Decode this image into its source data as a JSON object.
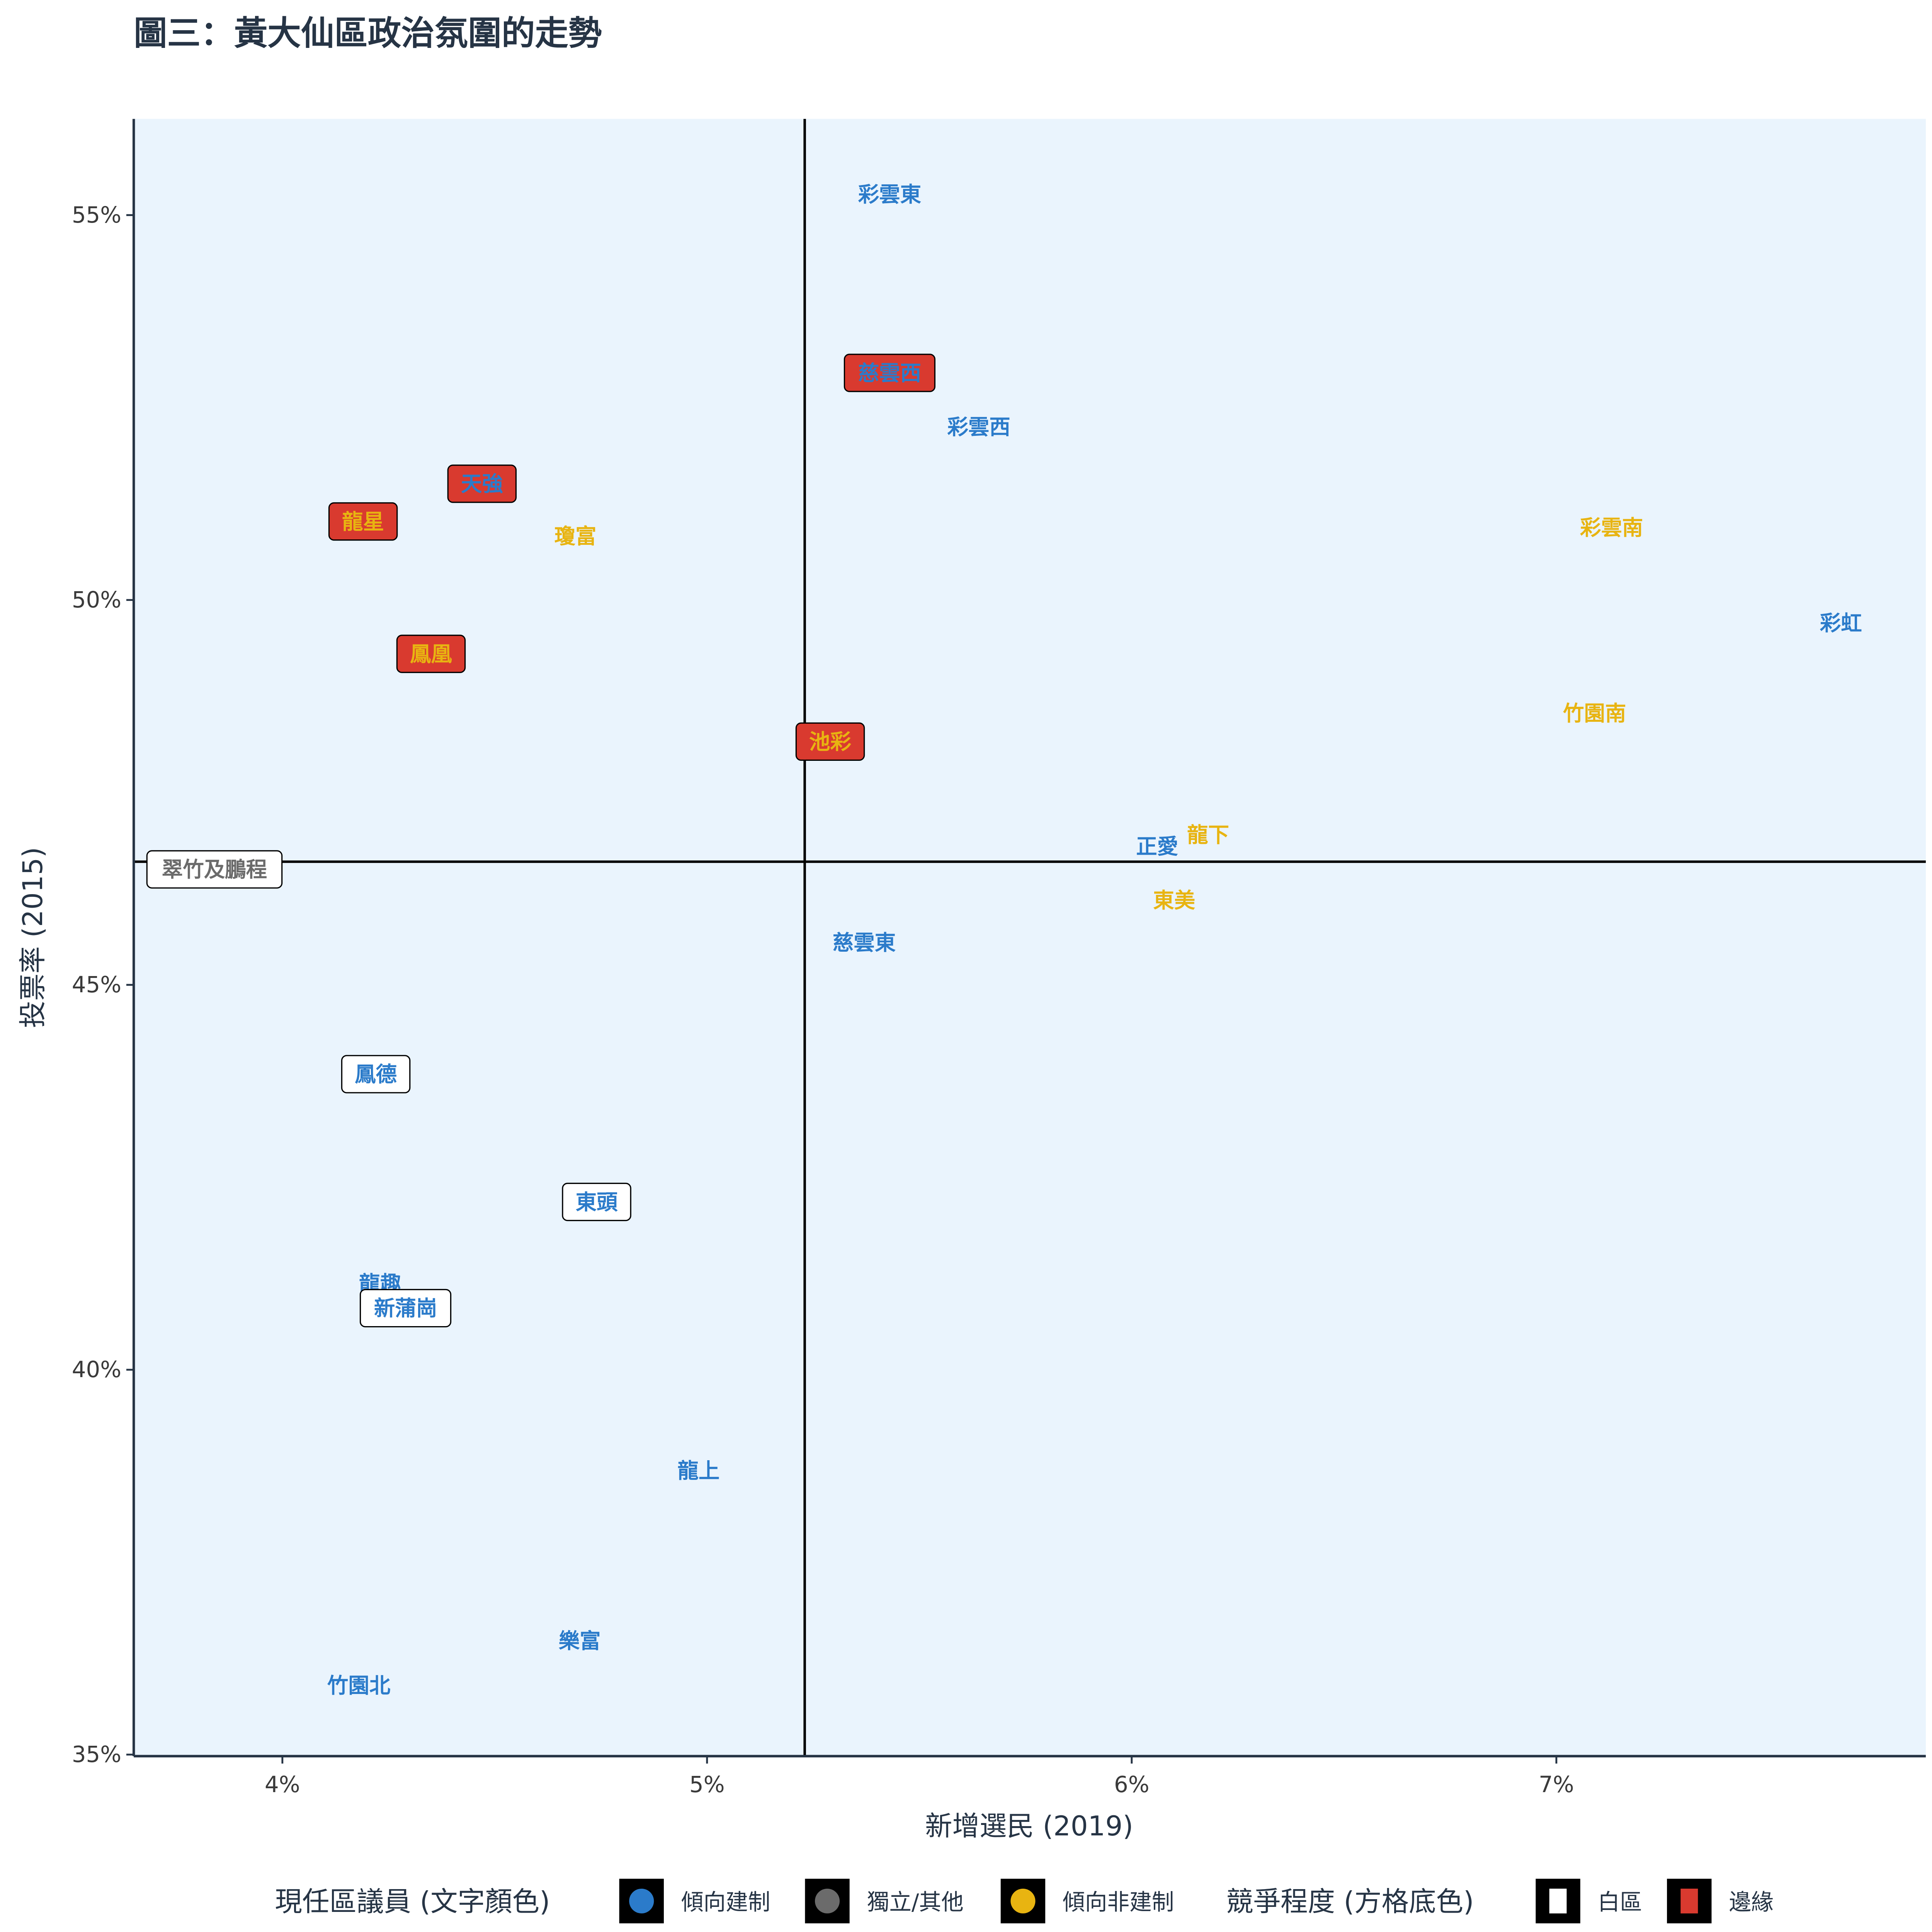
{
  "chart_data": {
    "type": "scatter",
    "title": "圖三：黃大仙區政治氛圍的走勢",
    "xlabel": "新增選民 (2019)",
    "ylabel": "投票率 (2015)",
    "xlim": [
      3.65,
      7.87
    ],
    "ylim": [
      34.98,
      56.25
    ],
    "x_unit": "%",
    "y_unit": "%",
    "x_ticks": [
      {
        "v": 4,
        "label": "4%"
      },
      {
        "v": 5,
        "label": "5%"
      },
      {
        "v": 6,
        "label": "6%"
      },
      {
        "v": 7,
        "label": "7%"
      }
    ],
    "y_ticks": [
      {
        "v": 35,
        "label": "35%"
      },
      {
        "v": 40,
        "label": "40%"
      },
      {
        "v": 45,
        "label": "45%"
      },
      {
        "v": 50,
        "label": "50%"
      },
      {
        "v": 55,
        "label": "55%"
      }
    ],
    "reference_lines": {
      "x": 5.23,
      "y": 46.6
    },
    "grid": false,
    "background": "#eaf4fd",
    "colors": {
      "pro_establishment": "#2b7bca",
      "independent": "#6b6b6b",
      "non_establishment": "#e8b411",
      "safe": "#ffffff",
      "marginal": "#d93a2f"
    },
    "points": [
      {
        "label": "彩雲東",
        "x": 5.43,
        "y": 55.27,
        "camp": "pro_establishment",
        "competition": "none"
      },
      {
        "label": "慈雲西",
        "x": 5.43,
        "y": 52.95,
        "camp": "pro_establishment",
        "competition": "marginal"
      },
      {
        "label": "彩雲西",
        "x": 5.64,
        "y": 52.25,
        "camp": "pro_establishment",
        "competition": "none"
      },
      {
        "label": "天強",
        "x": 4.47,
        "y": 51.51,
        "camp": "pro_establishment",
        "competition": "marginal"
      },
      {
        "label": "龍星",
        "x": 4.19,
        "y": 51.02,
        "camp": "non_establishment",
        "competition": "marginal"
      },
      {
        "label": "瓊富",
        "x": 4.69,
        "y": 50.83,
        "camp": "non_establishment",
        "competition": "none"
      },
      {
        "label": "彩雲南",
        "x": 7.13,
        "y": 50.94,
        "camp": "non_establishment",
        "competition": "none"
      },
      {
        "label": "彩虹",
        "x": 7.67,
        "y": 49.7,
        "camp": "pro_establishment",
        "competition": "none"
      },
      {
        "label": "鳳凰",
        "x": 4.35,
        "y": 49.3,
        "camp": "non_establishment",
        "competition": "marginal"
      },
      {
        "label": "竹園南",
        "x": 7.09,
        "y": 48.53,
        "camp": "non_establishment",
        "competition": "none"
      },
      {
        "label": "池彩",
        "x": 5.29,
        "y": 48.16,
        "camp": "non_establishment",
        "competition": "marginal"
      },
      {
        "label": "龍下",
        "x": 6.18,
        "y": 46.95,
        "camp": "non_establishment",
        "competition": "none"
      },
      {
        "label": "正愛",
        "x": 6.06,
        "y": 46.8,
        "camp": "pro_establishment",
        "competition": "none"
      },
      {
        "label": "翠竹及鵬程",
        "x": 3.84,
        "y": 46.5,
        "camp": "independent",
        "competition": "safe"
      },
      {
        "label": "東美",
        "x": 6.1,
        "y": 46.1,
        "camp": "non_establishment",
        "competition": "none"
      },
      {
        "label": "慈雲東",
        "x": 5.37,
        "y": 45.55,
        "camp": "pro_establishment",
        "competition": "none"
      },
      {
        "label": "鳳德",
        "x": 4.22,
        "y": 43.84,
        "camp": "pro_establishment",
        "competition": "safe"
      },
      {
        "label": "東頭",
        "x": 4.74,
        "y": 42.18,
        "camp": "pro_establishment",
        "competition": "safe"
      },
      {
        "label": "龍趣",
        "x": 4.23,
        "y": 41.12,
        "camp": "pro_establishment",
        "competition": "none"
      },
      {
        "label": "新蒲崗",
        "x": 4.29,
        "y": 40.8,
        "camp": "pro_establishment",
        "competition": "safe"
      },
      {
        "label": "龍上",
        "x": 4.98,
        "y": 38.69,
        "camp": "pro_establishment",
        "competition": "none"
      },
      {
        "label": "樂富",
        "x": 4.7,
        "y": 36.48,
        "camp": "pro_establishment",
        "competition": "none"
      },
      {
        "label": "竹園北",
        "x": 4.18,
        "y": 35.9,
        "camp": "pro_establishment",
        "competition": "none"
      }
    ],
    "legend": {
      "placement": "bottom",
      "camp_title": "現任區議員 (文字顏色)",
      "camp_items": [
        {
          "key": "pro_establishment",
          "label": "傾向建制"
        },
        {
          "key": "independent",
          "label": "獨立/其他"
        },
        {
          "key": "non_establishment",
          "label": "傾向非建制"
        }
      ],
      "competition_title": "競爭程度 (方格底色)",
      "competition_items": [
        {
          "key": "safe",
          "label": "白區"
        },
        {
          "key": "marginal",
          "label": "邊緣"
        }
      ]
    }
  }
}
